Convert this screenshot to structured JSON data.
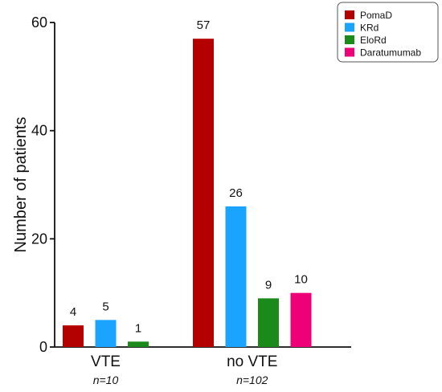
{
  "chart_data": {
    "type": "bar",
    "categories": [
      "VTE",
      "no VTE"
    ],
    "category_sublabels": [
      "n=10",
      "n=102"
    ],
    "series": [
      {
        "name": "PomaD",
        "values": [
          4,
          57
        ],
        "color": "#b30000"
      },
      {
        "name": "KRd",
        "values": [
          5,
          26
        ],
        "color": "#1aa3ff"
      },
      {
        "name": "EloRd",
        "values": [
          1,
          9
        ],
        "color": "#1a8a1a"
      },
      {
        "name": "Daratumumab",
        "values": [
          null,
          10
        ],
        "color": "#ee0077"
      }
    ],
    "ylabel": "Number of patients",
    "ylim": [
      0,
      60
    ],
    "yticks": [
      0,
      20,
      40,
      60
    ],
    "legend": "top-right",
    "grid": false
  }
}
